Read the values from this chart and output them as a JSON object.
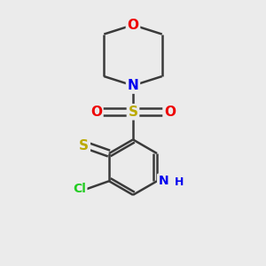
{
  "bg_color": "#ebebeb",
  "atom_colors": {
    "C": "#3a3a3a",
    "N": "#0000ee",
    "O": "#ee0000",
    "S": "#bbaa00",
    "Cl": "#22cc22",
    "H": "#0000ee"
  },
  "bond_color": "#3a3a3a",
  "bond_lw": 1.8,
  "figsize": [
    3.0,
    3.0
  ],
  "dpi": 100
}
